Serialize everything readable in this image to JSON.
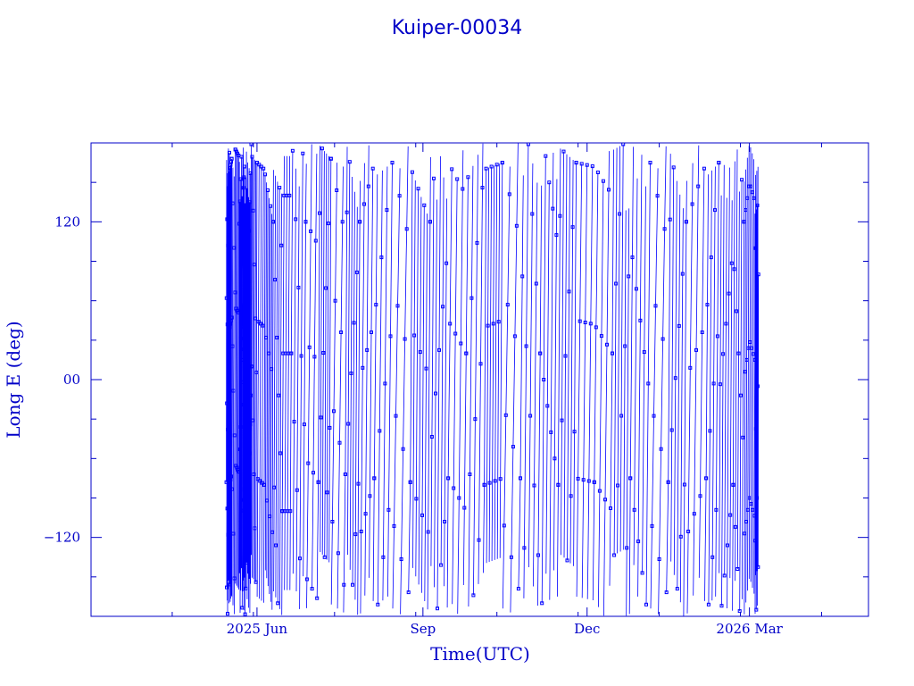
{
  "chart_data": {
    "type": "line",
    "title": "Kuiper-00034",
    "xlabel": "Time(UTC)",
    "ylabel": "Long E (deg)",
    "x_tick_labels": [
      "2025 Jun",
      "Sep",
      "Dec",
      "2026 Mar"
    ],
    "x_tick_dates": [
      "2025-06-01",
      "2025-09-01",
      "2025-12-01",
      "2026-03-01"
    ],
    "xlim": [
      "2025-03-01",
      "2026-05-06"
    ],
    "y_ticks": [
      -120,
      0,
      120
    ],
    "y_tick_labels": [
      "−120",
      "00",
      "120"
    ],
    "ylim": [
      -180,
      180
    ],
    "data_range": [
      "2025-05-15",
      "2026-03-06"
    ],
    "grid": false,
    "line_color": "#0000ff",
    "axis_color": "#0000c8",
    "series": [
      {
        "x": [
          "2025-05-15",
          "2025-05-16",
          "2025-05-17",
          "2025-05-18",
          "2025-05-20",
          "2025-05-22",
          "2025-05-24",
          "2025-05-25",
          "2025-05-27",
          "2025-05-29",
          "2025-06-01",
          "2025-06-05",
          "2025-06-10",
          "2025-06-15",
          "2025-06-20",
          "2025-06-28",
          "2025-07-05",
          "2025-07-12",
          "2025-07-20",
          "2025-07-28",
          "2025-08-05",
          "2025-08-15",
          "2025-08-25",
          "2025-09-05",
          "2025-09-15",
          "2025-09-25",
          "2025-10-05",
          "2025-10-15",
          "2025-10-25",
          "2025-11-05",
          "2025-11-15",
          "2025-11-25",
          "2025-12-05",
          "2025-12-15",
          "2025-12-25",
          "2026-01-05",
          "2026-01-15",
          "2026-01-25",
          "2026-02-05",
          "2026-02-12",
          "2026-02-20",
          "2026-02-26",
          "2026-03-01",
          "2026-03-04",
          "2026-03-06"
        ],
        "y": [
          -78,
          -118,
          40,
          168,
          175,
          -70,
          15,
          162,
          -100,
          10,
          165,
          -80,
          120,
          -100,
          20,
          120,
          -78,
          168,
          -72,
          120,
          -75,
          165,
          -78,
          120,
          -75,
          20,
          -80,
          165,
          -75,
          20,
          -80,
          165,
          -78,
          20,
          -75,
          165,
          -78,
          120,
          -75,
          165,
          -80,
          120,
          -90,
          15,
          80
        ]
      }
    ]
  }
}
